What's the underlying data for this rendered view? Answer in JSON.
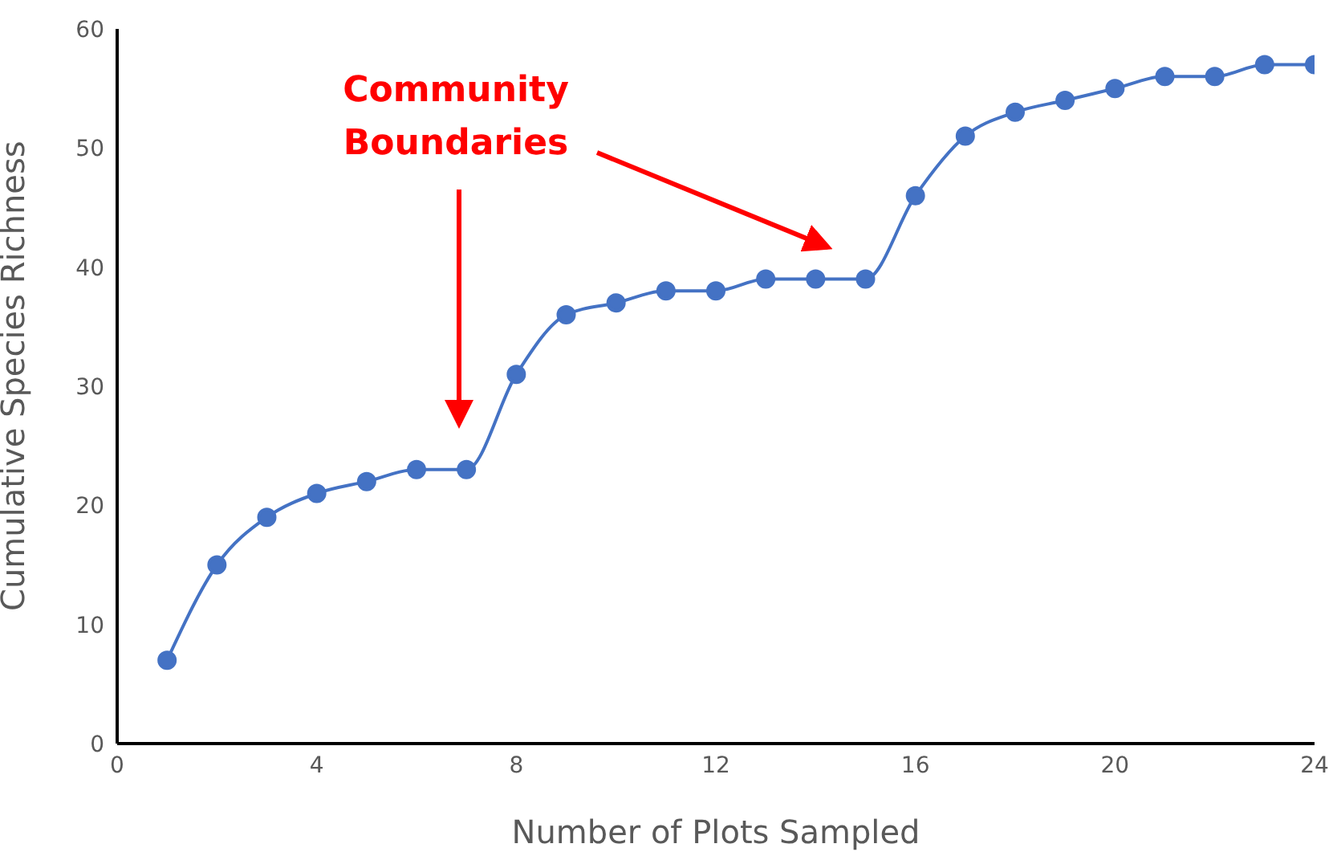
{
  "chart_data": {
    "type": "line",
    "xlabel": "Number of Plots Sampled",
    "ylabel": "Cumulative Species Richness",
    "x": [
      1,
      2,
      3,
      4,
      5,
      6,
      7,
      8,
      9,
      10,
      11,
      12,
      13,
      14,
      15,
      16,
      17,
      18,
      19,
      20,
      21,
      22,
      23,
      24
    ],
    "series": [
      {
        "color": "#4472c4",
        "values": [
          7,
          15,
          19,
          21,
          22,
          23,
          23,
          31,
          36,
          37,
          38,
          38,
          39,
          39,
          39,
          46,
          51,
          53,
          54,
          55,
          56,
          56,
          57,
          57
        ]
      }
    ],
    "xlim": [
      0,
      24
    ],
    "xticks": [
      0,
      4,
      8,
      12,
      16,
      20,
      24
    ],
    "ylim": [
      0,
      60
    ],
    "yticks": [
      0,
      10,
      20,
      30,
      40,
      50,
      60
    ],
    "grid": false,
    "marker": "circle",
    "line_style": "solid",
    "annotations": [
      "Community Boundaries"
    ]
  }
}
